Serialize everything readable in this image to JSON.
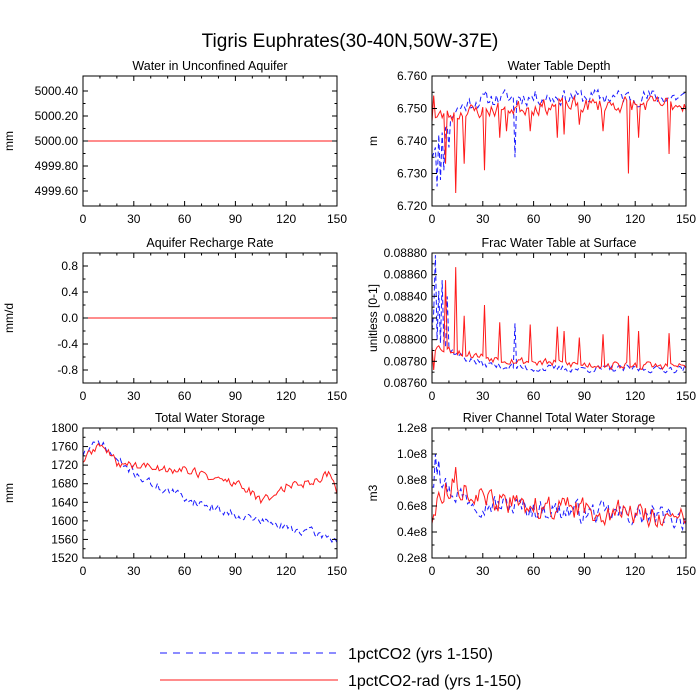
{
  "figure": {
    "title": "Tigris Euphrates(30-40N,50W-37E)",
    "legend": [
      {
        "label": "1pctCO2 (yrs 1-150)",
        "color": "#1a1aff",
        "style": "dashed"
      },
      {
        "label": "1pctCO2-rad (yrs 1-150)",
        "color": "#ff1a1a",
        "style": "solid"
      }
    ]
  },
  "chart_data": [
    {
      "type": "line",
      "title": "Water in Unconfined Aquifer",
      "ylabel": "mm",
      "xlim": [
        0,
        150
      ],
      "ylim": [
        4999.48,
        5000.52
      ],
      "xticks": [
        0,
        30,
        60,
        90,
        120,
        150
      ],
      "xtick_labels": [
        "0",
        "30",
        "60",
        "90",
        "120",
        "150"
      ],
      "yticks": [
        4999.6,
        4999.8,
        5000.0,
        5000.2,
        5000.4
      ],
      "ytick_labels": [
        "4999.60",
        "4999.80",
        "5000.00",
        "5000.20",
        "5000.40"
      ],
      "series": [
        {
          "name": "1pctCO2 (yrs 1-150)",
          "color": "#1a1aff",
          "style": "dashed",
          "gen": {
            "type": "flat",
            "value": 5000.0
          }
        },
        {
          "name": "1pctCO2-rad (yrs 1-150)",
          "color": "#ff1a1a",
          "style": "solid",
          "gen": {
            "type": "flat",
            "value": 5000.0
          }
        }
      ]
    },
    {
      "type": "line",
      "title": "Water Table Depth",
      "ylabel": "m",
      "xlim": [
        0,
        150
      ],
      "ylim": [
        6.72,
        6.76
      ],
      "xticks": [
        0,
        30,
        60,
        90,
        120,
        150
      ],
      "xtick_labels": [
        "0",
        "30",
        "60",
        "90",
        "120",
        "150"
      ],
      "yticks": [
        6.72,
        6.73,
        6.74,
        6.75,
        6.76
      ],
      "ytick_labels": [
        "6.720",
        "6.730",
        "6.740",
        "6.750",
        "6.760"
      ],
      "series": [
        {
          "name": "1pctCO2 (yrs 1-150)",
          "color": "#1a1aff",
          "style": "dashed",
          "gen": {
            "type": "noise",
            "seed": 11,
            "start": 6.736,
            "end": 6.7535,
            "tau": 10,
            "noise": 0.0022,
            "spikes": [
              [
                3,
                6.726
              ],
              [
                5,
                6.728
              ],
              [
                7,
                6.731
              ],
              [
                10,
                6.738
              ],
              [
                49,
                6.735
              ]
            ]
          }
        },
        {
          "name": "1pctCO2-rad (yrs 1-150)",
          "color": "#ff1a1a",
          "style": "solid",
          "gen": {
            "type": "noise",
            "seed": 23,
            "start": 6.747,
            "end": 6.7515,
            "tau": 40,
            "noise": 0.0022,
            "spikes": [
              [
                1,
                6.754
              ],
              [
                8,
                6.733
              ],
              [
                14,
                6.724
              ],
              [
                19,
                6.733
              ],
              [
                31,
                6.731
              ],
              [
                40,
                6.741
              ],
              [
                44,
                6.743
              ],
              [
                58,
                6.743
              ],
              [
                74,
                6.741
              ],
              [
                78,
                6.742
              ],
              [
                87,
                6.745
              ],
              [
                101,
                6.743
              ],
              [
                116,
                6.73
              ],
              [
                122,
                6.741
              ],
              [
                140,
                6.736
              ]
            ]
          }
        }
      ]
    },
    {
      "type": "line",
      "title": "Aquifer Recharge Rate",
      "ylabel": "mm/d",
      "xlim": [
        0,
        150
      ],
      "ylim": [
        -1.0,
        1.0
      ],
      "xticks": [
        0,
        30,
        60,
        90,
        120,
        150
      ],
      "xtick_labels": [
        "0",
        "30",
        "60",
        "90",
        "120",
        "150"
      ],
      "yticks": [
        -0.8,
        -0.4,
        0.0,
        0.4,
        0.8
      ],
      "ytick_labels": [
        "-0.8",
        "-0.4",
        "0.0",
        "0.4",
        "0.8"
      ],
      "series": [
        {
          "name": "1pctCO2 (yrs 1-150)",
          "color": "#1a1aff",
          "style": "dashed",
          "gen": {
            "type": "flat",
            "value": 0.0
          }
        },
        {
          "name": "1pctCO2-rad (yrs 1-150)",
          "color": "#ff1a1a",
          "style": "solid",
          "gen": {
            "type": "flat",
            "value": 0.0
          }
        }
      ]
    },
    {
      "type": "line",
      "title": "Frac Water Table at Surface",
      "ylabel": "unitless [0-1]",
      "xlim": [
        0,
        150
      ],
      "ylim": [
        0.0876,
        0.0888
      ],
      "xticks": [
        0,
        30,
        60,
        90,
        120,
        150
      ],
      "xtick_labels": [
        "0",
        "30",
        "60",
        "90",
        "120",
        "150"
      ],
      "yticks": [
        0.0876,
        0.0878,
        0.088,
        0.0882,
        0.0884,
        0.0886,
        0.0888
      ],
      "ytick_labels": [
        "0.08760",
        "0.08780",
        "0.08800",
        "0.08820",
        "0.08840",
        "0.08860",
        "0.08880"
      ],
      "series": [
        {
          "name": "1pctCO2 (yrs 1-150)",
          "color": "#1a1aff",
          "style": "dashed",
          "gen": {
            "type": "noise",
            "seed": 37,
            "start": 0.0881,
            "end": 0.08773,
            "tau": 15,
            "noise": 3e-05,
            "spikes": [
              [
                1,
                0.08825
              ],
              [
                2,
                0.08878
              ],
              [
                4,
                0.08845
              ],
              [
                6,
                0.08855
              ],
              [
                9,
                0.0884
              ],
              [
                49,
                0.08815
              ]
            ]
          }
        },
        {
          "name": "1pctCO2-rad (yrs 1-150)",
          "color": "#ff1a1a",
          "style": "solid",
          "gen": {
            "type": "noise",
            "seed": 53,
            "start": 0.08795,
            "end": 0.08775,
            "tau": 40,
            "noise": 3.5e-05,
            "spikes": [
              [
                1,
                0.08772
              ],
              [
                8,
                0.08855
              ],
              [
                14,
                0.08867
              ],
              [
                19,
                0.08822
              ],
              [
                31,
                0.08832
              ],
              [
                40,
                0.08816
              ],
              [
                58,
                0.08814
              ],
              [
                74,
                0.08812
              ],
              [
                78,
                0.08808
              ],
              [
                87,
                0.08802
              ],
              [
                101,
                0.08805
              ],
              [
                116,
                0.08822
              ],
              [
                122,
                0.08808
              ],
              [
                140,
                0.08806
              ]
            ]
          }
        }
      ]
    },
    {
      "type": "line",
      "title": "Total Water Storage",
      "ylabel": "mm",
      "xlim": [
        0,
        150
      ],
      "ylim": [
        1520,
        1800
      ],
      "xticks": [
        0,
        30,
        60,
        90,
        120,
        150
      ],
      "xtick_labels": [
        "0",
        "30",
        "60",
        "90",
        "120",
        "150"
      ],
      "yticks": [
        1520,
        1560,
        1600,
        1640,
        1680,
        1720,
        1760,
        1800
      ],
      "ytick_labels": [
        "1520",
        "1560",
        "1600",
        "1640",
        "1680",
        "1720",
        "1760",
        "1800"
      ],
      "series": [
        {
          "name": "1pctCO2 (yrs 1-150)",
          "color": "#1a1aff",
          "style": "dashed",
          "gen": {
            "type": "curve",
            "seed": 71,
            "noise": 9,
            "points": [
              [
                0,
                1745
              ],
              [
                10,
                1770
              ],
              [
                20,
                1730
              ],
              [
                40,
                1680
              ],
              [
                60,
                1650
              ],
              [
                80,
                1625
              ],
              [
                100,
                1605
              ],
              [
                120,
                1585
              ],
              [
                135,
                1575
              ],
              [
                150,
                1560
              ]
            ]
          }
        },
        {
          "name": "1pctCO2-rad (yrs 1-150)",
          "color": "#ff1a1a",
          "style": "solid",
          "gen": {
            "type": "curve",
            "seed": 89,
            "noise": 9,
            "points": [
              [
                0,
                1730
              ],
              [
                10,
                1765
              ],
              [
                20,
                1725
              ],
              [
                40,
                1715
              ],
              [
                60,
                1710
              ],
              [
                80,
                1690
              ],
              [
                95,
                1675
              ],
              [
                105,
                1640
              ],
              [
                120,
                1675
              ],
              [
                135,
                1685
              ],
              [
                145,
                1700
              ],
              [
                150,
                1665
              ]
            ]
          }
        }
      ]
    },
    {
      "type": "line",
      "title": "River Channel Total Water Storage",
      "ylabel": "m3",
      "xlim": [
        0,
        150
      ],
      "ylim": [
        20000000,
        120000000
      ],
      "xticks": [
        0,
        30,
        60,
        90,
        120,
        150
      ],
      "xtick_labels": [
        "0",
        "30",
        "60",
        "90",
        "120",
        "150"
      ],
      "yticks": [
        20000000,
        40000000,
        60000000,
        80000000,
        100000000,
        120000000
      ],
      "ytick_labels": [
        "0.2e8",
        "0.4e8",
        "0.6e8",
        "0.8e8",
        "1.0e8",
        "1.2e8"
      ],
      "series": [
        {
          "name": "1pctCO2 (yrs 1-150)",
          "color": "#1a1aff",
          "style": "dashed",
          "gen": {
            "type": "curve",
            "seed": 97,
            "noise": 7500000,
            "points": [
              [
                0,
                78000000
              ],
              [
                3,
                90000000
              ],
              [
                10,
                72000000
              ],
              [
                30,
                62000000
              ],
              [
                60,
                58000000
              ],
              [
                90,
                55000000
              ],
              [
                120,
                53000000
              ],
              [
                150,
                50000000
              ]
            ],
            "spikes": [
              [
                2,
                100000000
              ],
              [
                4,
                95000000
              ]
            ]
          }
        },
        {
          "name": "1pctCO2-rad (yrs 1-150)",
          "color": "#ff1a1a",
          "style": "solid",
          "gen": {
            "type": "curve",
            "seed": 113,
            "noise": 8000000,
            "points": [
              [
                0,
                50000000
              ],
              [
                5,
                70000000
              ],
              [
                14,
                78000000
              ],
              [
                30,
                64000000
              ],
              [
                60,
                60000000
              ],
              [
                90,
                57000000
              ],
              [
                120,
                55000000
              ],
              [
                150,
                48000000
              ]
            ],
            "spikes": [
              [
                14,
                90000000
              ]
            ]
          }
        }
      ]
    }
  ]
}
